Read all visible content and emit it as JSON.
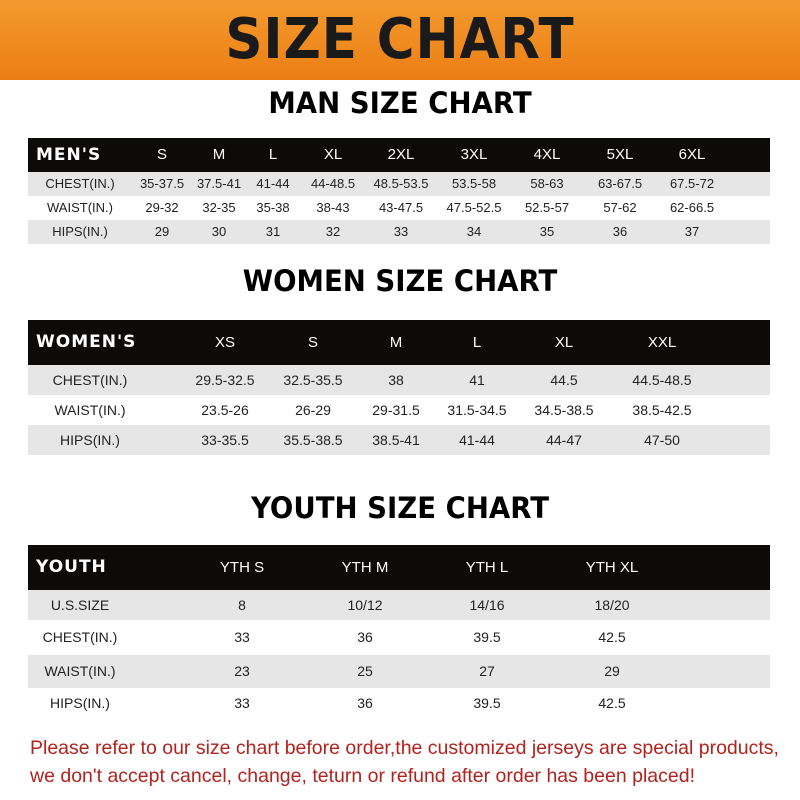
{
  "banner": {
    "title": "SIZE CHART",
    "color": "#ef8a1f"
  },
  "men": {
    "title": "MAN SIZE CHART",
    "header": [
      "MEN'S",
      "S",
      "M",
      "L",
      "XL",
      "2XL",
      "3XL",
      "4XL",
      "5XL",
      "6XL"
    ],
    "rows": [
      [
        "CHEST(IN.)",
        "35-37.5",
        "37.5-41",
        "41-44",
        "44-48.5",
        "48.5-53.5",
        "53.5-58",
        "58-63",
        "63-67.5",
        "67.5-72"
      ],
      [
        "WAIST(IN.)",
        "29-32",
        "32-35",
        "35-38",
        "38-43",
        "43-47.5",
        "47.5-52.5",
        "52.5-57",
        "57-62",
        "62-66.5"
      ],
      [
        "HIPS(IN.)",
        "29",
        "30",
        "31",
        "32",
        "33",
        "34",
        "35",
        "36",
        "37"
      ]
    ]
  },
  "women": {
    "title": "WOMEN SIZE CHART",
    "header": [
      "WOMEN'S",
      "XS",
      "S",
      "M",
      "L",
      "XL",
      "XXL"
    ],
    "rows": [
      [
        "CHEST(IN.)",
        "29.5-32.5",
        "32.5-35.5",
        "38",
        "41",
        "44.5",
        "44.5-48.5"
      ],
      [
        "WAIST(IN.)",
        "23.5-26",
        "26-29",
        "29-31.5",
        "31.5-34.5",
        "34.5-38.5",
        "38.5-42.5"
      ],
      [
        "HIPS(IN.)",
        "33-35.5",
        "35.5-38.5",
        "38.5-41",
        "41-44",
        "44-47",
        "47-50"
      ]
    ]
  },
  "youth": {
    "title": "YOUTH SIZE CHART",
    "header": [
      "YOUTH",
      "YTH S",
      "YTH M",
      "YTH L",
      "YTH XL"
    ],
    "rows": [
      [
        "U.S.SIZE",
        "8",
        "10/12",
        "14/16",
        "18/20"
      ],
      [
        "CHEST(IN.)",
        "33",
        "36",
        "39.5",
        "42.5"
      ],
      [
        "WAIST(IN.)",
        "23",
        "25",
        "27",
        "29"
      ],
      [
        "HIPS(IN.)",
        "33",
        "36",
        "39.5",
        "42.5"
      ]
    ]
  },
  "notice": {
    "line1": "Please refer to our size chart before order,the customized jerseys are special products,",
    "line2": "we don't accept cancel, change, teturn or refund after order has been placed!",
    "color": "#b0231e"
  }
}
